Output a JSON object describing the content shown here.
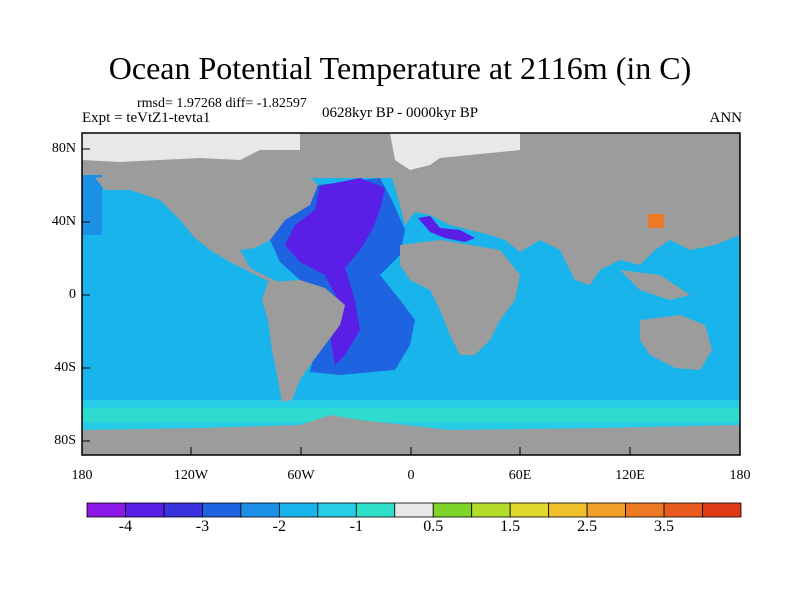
{
  "title": "Ocean Potential Temperature at 2116m (in C)",
  "stats": "rmsd= 1.97268 diff= -1.82597",
  "experiment": "Expt = teVtZ1-tevta1",
  "period": "0628kyr BP - 0000kyr BP",
  "season": "ANN",
  "lat_labels": [
    "80N",
    "40N",
    "0",
    "40S",
    "80S"
  ],
  "lon_labels": [
    "180",
    "120W",
    "60W",
    "0",
    "60E",
    "120E",
    "180"
  ],
  "colorbar": {
    "colors": [
      "#8a19e8",
      "#5a1fe6",
      "#3a32dd",
      "#1e63e0",
      "#1c8fe6",
      "#19b4ec",
      "#27cde6",
      "#2fe0c8",
      "#e8e8e8",
      "#7ed42a",
      "#b4dc2a",
      "#e0d82a",
      "#f0c02a",
      "#f0a02a",
      "#ec7a24",
      "#e85a1e",
      "#e03a16"
    ],
    "labels": [
      "-4",
      "-3",
      "-2",
      "-1",
      "0.5",
      "1.5",
      "2.5",
      "3.5"
    ]
  },
  "colors": {
    "land": "#9c9c9c",
    "ocean": "#19b4ec",
    "ocean_deep": "#1c8fe6",
    "atlantic": "#1e63e0",
    "atlantic_north": "#5a1fe6",
    "southern_band": "#2fe0c8",
    "ice": "#e8e8e8",
    "japan_warm": "#ec7a24"
  }
}
